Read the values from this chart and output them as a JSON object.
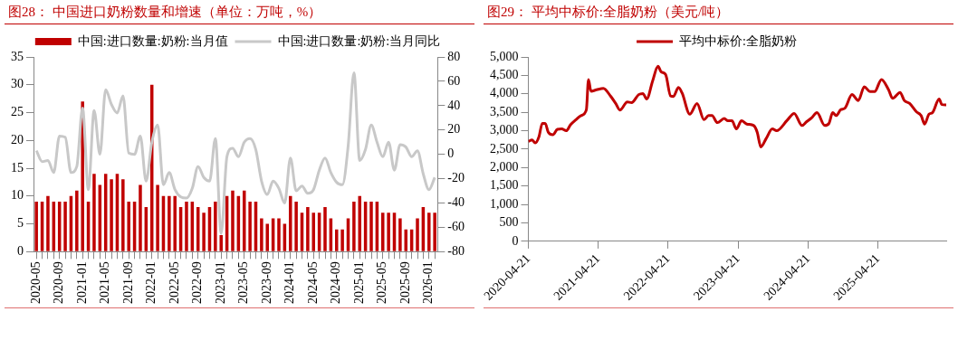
{
  "chart_data": [
    {
      "type": "bar",
      "title": "图28： 中国进口奶粉数量和增速（单位：万吨，%）",
      "categories": [
        "2020-05",
        null,
        null,
        null,
        "2020-09",
        null,
        null,
        null,
        "2021-01",
        null,
        null,
        null,
        "2021-05",
        null,
        null,
        null,
        "2021-09",
        null,
        null,
        null,
        "2022-01",
        null,
        null,
        null,
        "2022-05",
        null,
        null,
        null,
        "2022-09",
        null,
        null,
        null,
        "2023-01",
        null,
        null,
        null,
        "2023-05",
        null,
        null,
        null,
        "2023-09",
        null,
        null,
        null,
        "2024-01",
        null,
        null,
        null,
        "2024-05",
        null,
        null,
        null,
        "2024-09",
        null,
        null,
        null,
        "2025-01",
        null,
        null,
        null,
        "2025-05",
        null,
        null,
        null,
        "2025-09",
        null,
        null,
        null,
        "2026-01",
        null
      ],
      "series": [
        {
          "name": "中国:进口数量:奶粉:当月值",
          "type": "bar",
          "color": "#c00000",
          "values": [
            9,
            9,
            10,
            9,
            9,
            9,
            10,
            11,
            27,
            9,
            14,
            12,
            14,
            13,
            14,
            13,
            9,
            9,
            12,
            8,
            30,
            12,
            10,
            10,
            10,
            8,
            9,
            9,
            8,
            7,
            8,
            9,
            3,
            10,
            11,
            10,
            11,
            9,
            9,
            6,
            5,
            6,
            6,
            5,
            10,
            9,
            7,
            8,
            7,
            7,
            8,
            6,
            4,
            4,
            6,
            9,
            10,
            9,
            9,
            9,
            7,
            7,
            7,
            6,
            4,
            4,
            6,
            8,
            7,
            7
          ]
        },
        {
          "name": "中国:进口数量:奶粉:当月同比",
          "type": "line",
          "axis": "y2",
          "color": "#c8c8c8",
          "values": [
            3,
            -6,
            -5,
            -15,
            15,
            14,
            -15,
            -10,
            38,
            -29,
            36,
            0,
            53,
            41,
            34,
            48,
            1,
            0,
            15,
            -22,
            10,
            24,
            -25,
            -15,
            -29,
            -35,
            -36,
            -28,
            -10,
            -19,
            -22,
            13,
            -65,
            -2,
            5,
            -2,
            10,
            13,
            4,
            -22,
            -33,
            -22,
            -28,
            -40,
            -3,
            -30,
            -26,
            -32,
            -29,
            -13,
            -3,
            -15,
            -23,
            -25,
            7,
            67,
            -5,
            4,
            24,
            10,
            -2,
            10,
            -13,
            8,
            6,
            -2,
            3,
            -16,
            -29,
            -19
          ]
        }
      ],
      "ylim": [
        0,
        35
      ],
      "yticks": [
        0,
        5,
        10,
        15,
        20,
        25,
        30,
        35
      ],
      "y2lim": [
        -80,
        80
      ],
      "y2ticks": [
        -80,
        -60,
        -40,
        -20,
        0,
        20,
        40,
        60,
        80
      ],
      "legend": "top"
    },
    {
      "type": "line",
      "title": "图29： 平均中标价:全脂奶粉（美元/吨）",
      "series": [
        {
          "name": "平均中标价:全脂奶粉",
          "color": "#c00000",
          "x": [
            "2020-04-21",
            "2020-05-10",
            "2020-05-27",
            "2020-06-15",
            "2020-07-03",
            "2020-07-18",
            "2020-08-03",
            "2020-08-27",
            "2020-09-20",
            "2020-10-12",
            "2020-11-05",
            "2020-11-27",
            "2020-12-24",
            "2021-01-21",
            "2021-02-18",
            "2021-03-01",
            "2021-03-14",
            "2021-04-12",
            "2021-05-18",
            "2021-06-24",
            "2021-07-21",
            "2021-08-12",
            "2021-09-20",
            "2021-10-12",
            "2021-11-18",
            "2021-12-10",
            "2021-12-30",
            "2022-01-30",
            "2022-02-27",
            "2022-03-15",
            "2022-04-08",
            "2022-05-04",
            "2022-05-18",
            "2022-06-14",
            "2022-07-03",
            "2022-08-12",
            "2022-09-19",
            "2022-10-25",
            "2022-11-18",
            "2022-12-06",
            "2023-01-03",
            "2023-02-08",
            "2023-02-27",
            "2023-03-20",
            "2023-04-12",
            "2023-05-09",
            "2023-06-06",
            "2023-07-12",
            "2023-07-30",
            "2023-08-18",
            "2023-09-15",
            "2023-10-17",
            "2023-11-08",
            "2024-01-02",
            "2024-02-08",
            "2024-03-20",
            "2024-04-12",
            "2024-05-09",
            "2024-06-06",
            "2024-07-17",
            "2024-08-08",
            "2024-08-27",
            "2024-09-15",
            "2024-10-08",
            "2024-10-30",
            "2024-12-06",
            "2025-01-08",
            "2025-02-08",
            "2025-03-10",
            "2025-04-03",
            "2025-05-09",
            "2025-06-15",
            "2025-07-06",
            "2025-08-14",
            "2025-09-05",
            "2025-10-03",
            "2025-11-08",
            "2025-12-02",
            "2025-12-20",
            "2026-01-12",
            "2026-01-30",
            "2026-03-06",
            "2026-03-20",
            "2026-04-12"
          ],
          "values": [
            2710,
            2750,
            2670,
            2830,
            3200,
            3200,
            2960,
            2890,
            3040,
            3050,
            3000,
            3160,
            3290,
            3410,
            3570,
            4390,
            4070,
            4110,
            4150,
            3940,
            3740,
            3560,
            3780,
            3760,
            3980,
            4010,
            3860,
            4350,
            4750,
            4600,
            4520,
            3940,
            3930,
            4170,
            4020,
            3450,
            3740,
            3300,
            3410,
            3410,
            3220,
            3330,
            3270,
            3270,
            3050,
            3270,
            3180,
            3140,
            2960,
            2560,
            2790,
            3050,
            3000,
            3280,
            3470,
            3140,
            3240,
            3350,
            3490,
            3140,
            3200,
            3490,
            3410,
            3570,
            3610,
            3980,
            3820,
            4190,
            4060,
            4060,
            4390,
            4110,
            3880,
            4040,
            3820,
            3740,
            3510,
            3410,
            3180,
            3450,
            3490,
            3860,
            3710,
            3700
          ]
        }
      ],
      "xlim": [
        "2020-04-21",
        "2026-04-12"
      ],
      "xticks": [
        "2020-04-21",
        "2021-04-21",
        "2022-04-21",
        "2023-04-21",
        "2024-04-21",
        "2025-04-21"
      ],
      "ylim": [
        0,
        5000
      ],
      "yticks": [
        0,
        {
          "value": 500,
          "label": "500"
        },
        {
          "value": 1000,
          "label": "1,000"
        },
        {
          "value": 1500,
          "label": "1,500"
        },
        {
          "value": 2000,
          "label": "2,000"
        },
        {
          "value": 2500,
          "label": "2,500"
        },
        {
          "value": 3000,
          "label": "3,000"
        },
        {
          "value": 3500,
          "label": "3,500"
        },
        {
          "value": 4000,
          "label": "4,000"
        },
        {
          "value": 4500,
          "label": "4,500"
        },
        {
          "value": 5000,
          "label": "5,000"
        }
      ],
      "legend": "top"
    }
  ]
}
